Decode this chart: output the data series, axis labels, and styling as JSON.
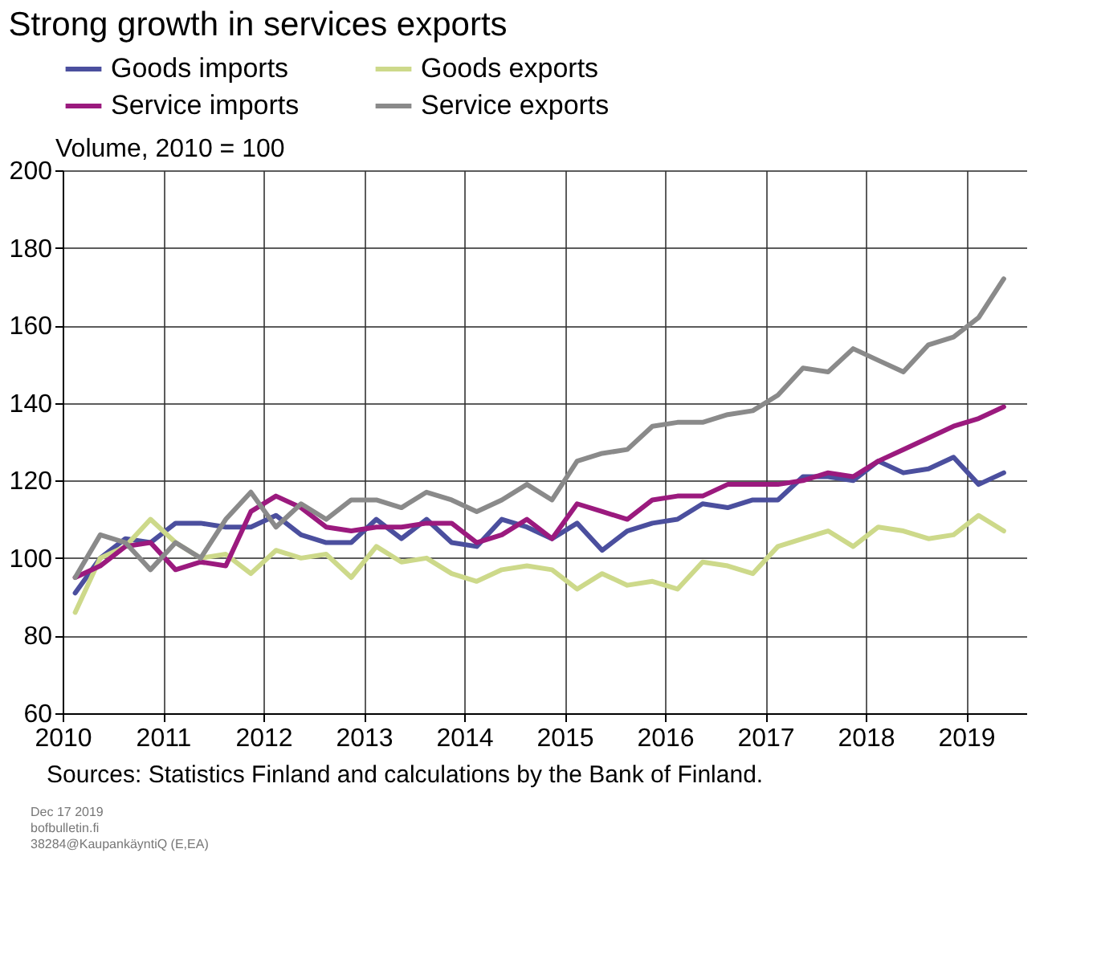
{
  "chart_data": {
    "type": "line",
    "title": "Strong growth  in services exports",
    "ylabel": "Volume, 2010 = 100",
    "x": [
      2010.125,
      2010.375,
      2010.625,
      2010.875,
      2011.125,
      2011.375,
      2011.625,
      2011.875,
      2012.125,
      2012.375,
      2012.625,
      2012.875,
      2013.125,
      2013.375,
      2013.625,
      2013.875,
      2014.125,
      2014.375,
      2014.625,
      2014.875,
      2015.125,
      2015.375,
      2015.625,
      2015.875,
      2016.125,
      2016.375,
      2016.625,
      2016.875,
      2017.125,
      2017.375,
      2017.625,
      2017.875,
      2018.125,
      2018.375,
      2018.625,
      2018.875,
      2019.125,
      2019.375
    ],
    "series": [
      {
        "name": "Goods imports",
        "color": "#4b4f9e",
        "values": [
          91,
          100,
          105,
          104,
          109,
          109,
          108,
          108,
          111,
          106,
          104,
          104,
          110,
          105,
          110,
          104,
          103,
          110,
          108,
          105,
          109,
          102,
          107,
          109,
          110,
          114,
          113,
          115,
          115,
          121,
          121,
          120,
          125,
          122,
          123,
          126,
          119,
          122
        ]
      },
      {
        "name": "Goods exports",
        "color": "#cdd98a",
        "values": [
          86,
          100,
          103,
          110,
          104,
          100,
          101,
          96,
          102,
          100,
          101,
          95,
          103,
          99,
          100,
          96,
          94,
          97,
          98,
          97,
          92,
          96,
          93,
          94,
          92,
          99,
          98,
          96,
          103,
          105,
          107,
          103,
          108,
          107,
          105,
          106,
          111,
          107
        ]
      },
      {
        "name": "Service imports",
        "color": "#9b1a7e",
        "values": [
          95,
          98,
          103,
          104,
          97,
          99,
          98,
          112,
          116,
          113,
          108,
          107,
          108,
          108,
          109,
          109,
          104,
          106,
          110,
          105,
          114,
          112,
          110,
          115,
          116,
          116,
          119,
          119,
          119,
          120,
          122,
          121,
          125,
          128,
          131,
          134,
          136,
          139
        ]
      },
      {
        "name": "Service exports",
        "color": "#8a8a8a",
        "values": [
          95,
          106,
          104,
          97,
          104,
          100,
          110,
          117,
          108,
          114,
          110,
          115,
          115,
          113,
          117,
          115,
          112,
          115,
          119,
          115,
          125,
          127,
          128,
          134,
          135,
          135,
          137,
          138,
          142,
          149,
          148,
          154,
          151,
          148,
          155,
          157,
          162,
          172
        ]
      }
    ],
    "xlim": [
      2010,
      2019.6
    ],
    "xticks": [
      2010,
      2011,
      2012,
      2013,
      2014,
      2015,
      2016,
      2017,
      2018,
      2019
    ],
    "ylim": [
      60,
      200
    ],
    "yticks": [
      60,
      80,
      100,
      120,
      140,
      160,
      180,
      200
    ],
    "grid": true,
    "legend": "top",
    "line_style": "solid",
    "marker": "none",
    "annotations": [
      "Sources: Statistics Finland and calculations by the Bank of Finland.",
      "Dec 17 2019",
      "bofbulletin.fi",
      "38284@KaupankäyntiQ (E,EA)"
    ]
  }
}
